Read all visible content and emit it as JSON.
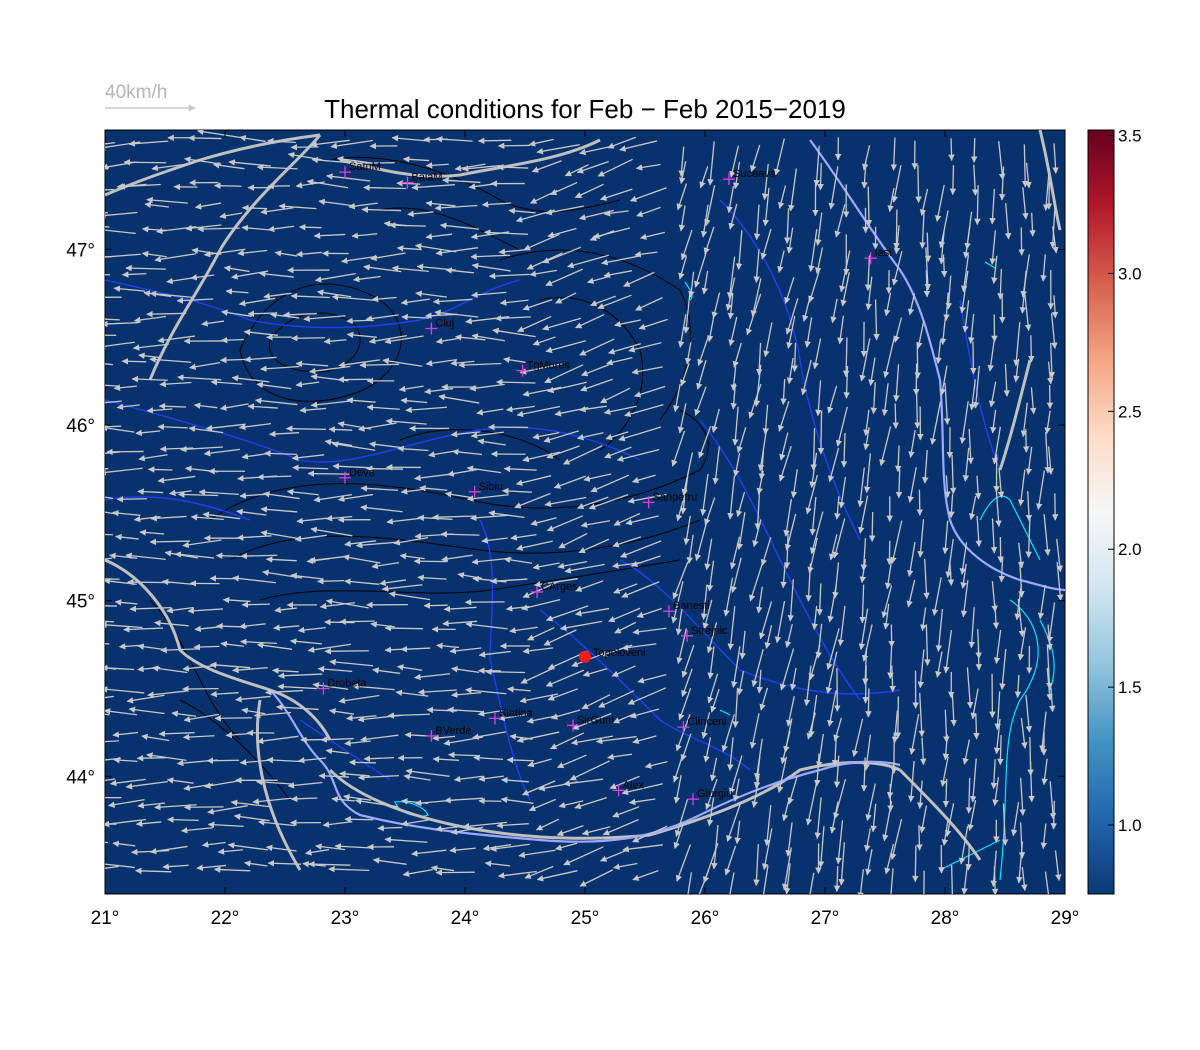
{
  "title": "Thermal conditions for Feb − Feb  2015−2019",
  "reference_arrow": {
    "label": "40km/h"
  },
  "map": {
    "lon_range": [
      21,
      29
    ],
    "lat_range": [
      43.33,
      47.68
    ],
    "background_color": "#08326e",
    "x_ticks": [
      {
        "value": 21,
        "label": "21°"
      },
      {
        "value": 22,
        "label": "22°"
      },
      {
        "value": 23,
        "label": "23°"
      },
      {
        "value": 24,
        "label": "24°"
      },
      {
        "value": 25,
        "label": "25°"
      },
      {
        "value": 26,
        "label": "26°"
      },
      {
        "value": 27,
        "label": "27°"
      },
      {
        "value": 28,
        "label": "28°"
      },
      {
        "value": 29,
        "label": "29°"
      }
    ],
    "y_ticks": [
      {
        "value": 44,
        "label": "44°"
      },
      {
        "value": 45,
        "label": "45°"
      },
      {
        "value": 46,
        "label": "46°"
      },
      {
        "value": 47,
        "label": "47°"
      }
    ],
    "colors": {
      "arrows": "#c8c8c8",
      "borders": "#c0c0c0",
      "rivers": "#1f3ff0",
      "contours": "#000000",
      "lakes": "#00e5ff",
      "marker": "#e040e0",
      "highlight": "#ff1a1a"
    },
    "cities": [
      {
        "name": "SatuM",
        "lon": 23.0,
        "lat": 47.44
      },
      {
        "name": "BaiaM",
        "lon": 23.52,
        "lat": 47.38
      },
      {
        "name": "Suceava",
        "lon": 26.2,
        "lat": 47.4
      },
      {
        "name": "Iasi",
        "lon": 27.38,
        "lat": 46.95
      },
      {
        "name": "Cluj",
        "lon": 23.72,
        "lat": 46.55
      },
      {
        "name": "TgMures",
        "lon": 24.48,
        "lat": 46.31
      },
      {
        "name": "Deva",
        "lon": 23.0,
        "lat": 45.7
      },
      {
        "name": "Sibiu",
        "lon": 24.08,
        "lat": 45.62
      },
      {
        "name": "Sanpetru",
        "lon": 25.53,
        "lat": 45.56
      },
      {
        "name": "CArges",
        "lon": 24.6,
        "lat": 45.05
      },
      {
        "name": "Banesti",
        "lon": 25.7,
        "lat": 44.94
      },
      {
        "name": "Strejnic",
        "lon": 25.85,
        "lat": 44.8
      },
      {
        "name": "Drobeta",
        "lon": 22.82,
        "lat": 44.5
      },
      {
        "name": "Slatina",
        "lon": 24.25,
        "lat": 44.33
      },
      {
        "name": "SirGum",
        "lon": 24.9,
        "lat": 44.29
      },
      {
        "name": "BVerde",
        "lon": 23.72,
        "lat": 44.23
      },
      {
        "name": "Clinceni",
        "lon": 25.82,
        "lat": 44.28
      },
      {
        "name": "Alex",
        "lon": 25.28,
        "lat": 43.92
      },
      {
        "name": "Giurgiu",
        "lon": 25.9,
        "lat": 43.87
      }
    ],
    "highlighted_station": {
      "name": "Topoloveni",
      "lon": 25.0,
      "lat": 44.68
    }
  },
  "colorbar": {
    "range": [
      0.75,
      3.52
    ],
    "ticks": [
      "1.0",
      "1.5",
      "2.0",
      "2.5",
      "3.0",
      "3.5"
    ],
    "tick_values": [
      1.0,
      1.5,
      2.0,
      2.5,
      3.0,
      3.5
    ],
    "stops": [
      "#0a3a78",
      "#2166ac",
      "#4393c3",
      "#92c5de",
      "#d1e5f0",
      "#f7f7f7",
      "#fddbc7",
      "#f4a582",
      "#d6604d",
      "#b2182b",
      "#67001f"
    ]
  }
}
